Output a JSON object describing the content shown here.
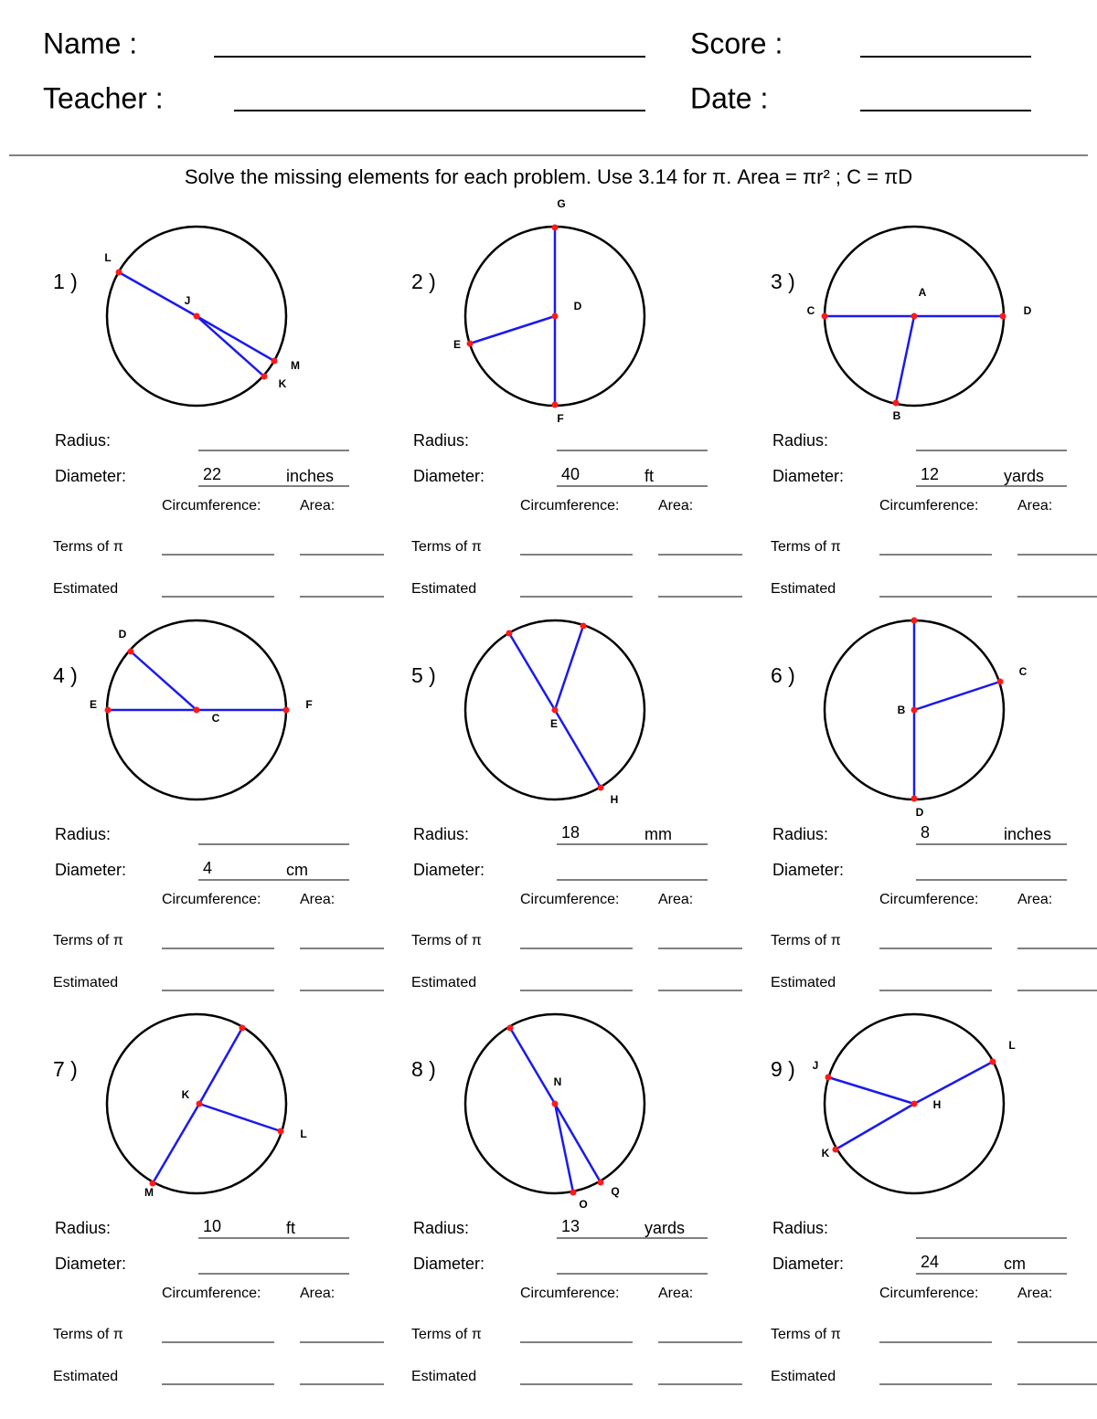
{
  "header": {
    "name": "Name :",
    "score": "Score :",
    "teacher": "Teacher :",
    "date": "Date :"
  },
  "instructions": "Solve the missing elements for each problem. Use 3.14 for π. Area = πr² ; C = πD",
  "labels": {
    "radius": "Radius:",
    "diameter": "Diameter:",
    "circumference": "Circumference:",
    "area": "Area:",
    "terms": "Terms of π",
    "estimated": "Estimated"
  },
  "problems": [
    {
      "number": "1 )",
      "points": [
        "L",
        "J",
        "M",
        "K"
      ],
      "diameter": {
        "value": 22,
        "unit": "inches"
      }
    },
    {
      "number": "2 )",
      "points": [
        "G",
        "D",
        "F",
        "E"
      ],
      "diameter": {
        "value": 40,
        "unit": "ft"
      }
    },
    {
      "number": "3 )",
      "points": [
        "A",
        "C",
        "D",
        "B"
      ],
      "diameter": {
        "value": 12,
        "unit": "yards"
      }
    },
    {
      "number": "4 )",
      "points": [
        "C",
        "E",
        "F",
        "D"
      ],
      "diameter": {
        "value": 4,
        "unit": "cm"
      }
    },
    {
      "number": "5 )",
      "points": [
        "E",
        "H"
      ],
      "radius": {
        "value": 18,
        "unit": "mm"
      }
    },
    {
      "number": "6 )",
      "points": [
        "B",
        "D",
        "C"
      ],
      "radius": {
        "value": 8,
        "unit": "inches"
      }
    },
    {
      "number": "7 )",
      "points": [
        "K",
        "L",
        "M"
      ],
      "radius": {
        "value": 10,
        "unit": "ft"
      }
    },
    {
      "number": "8 )",
      "points": [
        "N",
        "O",
        "Q"
      ],
      "radius": {
        "value": 13,
        "unit": "yards"
      }
    },
    {
      "number": "9 )",
      "points": [
        "H",
        "J",
        "L",
        "K"
      ],
      "diameter": {
        "value": 24,
        "unit": "cm"
      }
    }
  ]
}
